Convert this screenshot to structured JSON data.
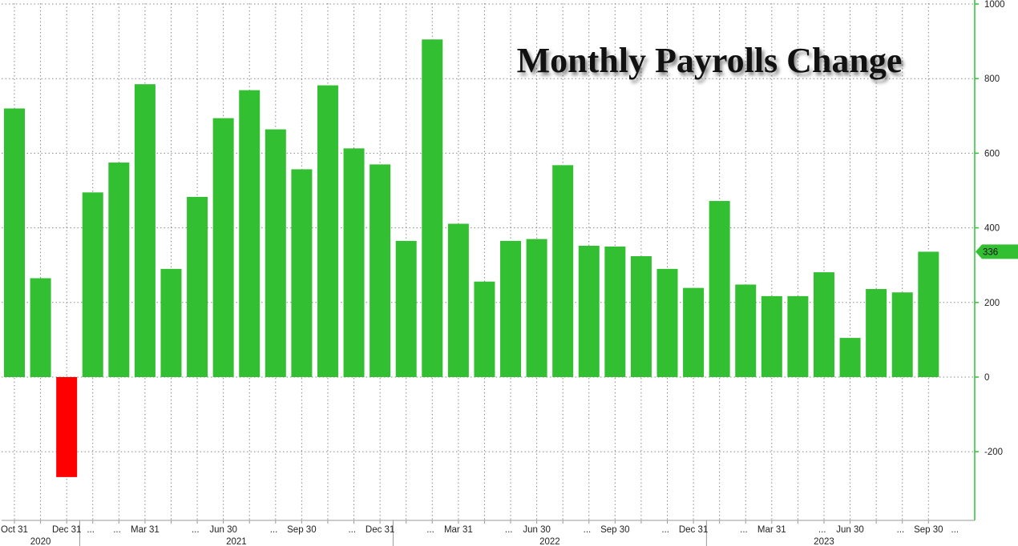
{
  "chart_data": {
    "type": "bar",
    "title": "Monthly Payrolls Change",
    "xlabel": "",
    "ylabel": "",
    "ylim": [
      -325,
      1000
    ],
    "y_ticks": [
      1000,
      800,
      600,
      400,
      200,
      0,
      -200
    ],
    "y_axis_position": "right",
    "grid": true,
    "legend": "none",
    "categories": [
      "2020-10",
      "2020-11",
      "2020-12",
      "2021-01",
      "2021-02",
      "2021-03",
      "2021-04",
      "2021-05",
      "2021-06",
      "2021-07",
      "2021-08",
      "2021-09",
      "2021-10",
      "2021-11",
      "2021-12",
      "2022-01",
      "2022-02",
      "2022-03",
      "2022-04",
      "2022-05",
      "2022-06",
      "2022-07",
      "2022-08",
      "2022-09",
      "2022-10",
      "2022-11",
      "2022-12",
      "2023-01",
      "2023-02",
      "2023-03",
      "2023-04",
      "2023-05",
      "2023-06",
      "2023-07",
      "2023-08",
      "2023-09"
    ],
    "values": [
      720,
      265,
      -268,
      495,
      575,
      785,
      290,
      483,
      694,
      769,
      664,
      557,
      782,
      613,
      570,
      365,
      905,
      411,
      256,
      365,
      370,
      568,
      352,
      350,
      324,
      290,
      239,
      472,
      248,
      217,
      217,
      281,
      105,
      236,
      227,
      336
    ],
    "x_tick_labels": [
      {
        "index": 0,
        "text": "Oct 31"
      },
      {
        "index": 2,
        "text": "Dec 31"
      },
      {
        "index": 5,
        "text": "Mar 31"
      },
      {
        "index": 8,
        "text": "Jun 30"
      },
      {
        "index": 11,
        "text": "Sep 30"
      },
      {
        "index": 14,
        "text": "Dec 31"
      },
      {
        "index": 17,
        "text": "Mar 31"
      },
      {
        "index": 20,
        "text": "Jun 30"
      },
      {
        "index": 23,
        "text": "Sep 30"
      },
      {
        "index": 26,
        "text": "Dec 31"
      },
      {
        "index": 29,
        "text": "Mar 31"
      },
      {
        "index": 32,
        "text": "Jun 30"
      },
      {
        "index": 35,
        "text": "Sep 30"
      }
    ],
    "years": [
      {
        "from": 0,
        "to": 2,
        "text": "2020"
      },
      {
        "from": 3,
        "to": 14,
        "text": "2021"
      },
      {
        "from": 15,
        "to": 26,
        "text": "2022"
      },
      {
        "from": 27,
        "to": 35,
        "text": "2023"
      }
    ],
    "last_value_label": "336",
    "colors": {
      "positive": "#32c032",
      "negative": "#ff0000",
      "axis": "#32c032",
      "grid": "#8a8a8a",
      "text": "#222222"
    }
  }
}
